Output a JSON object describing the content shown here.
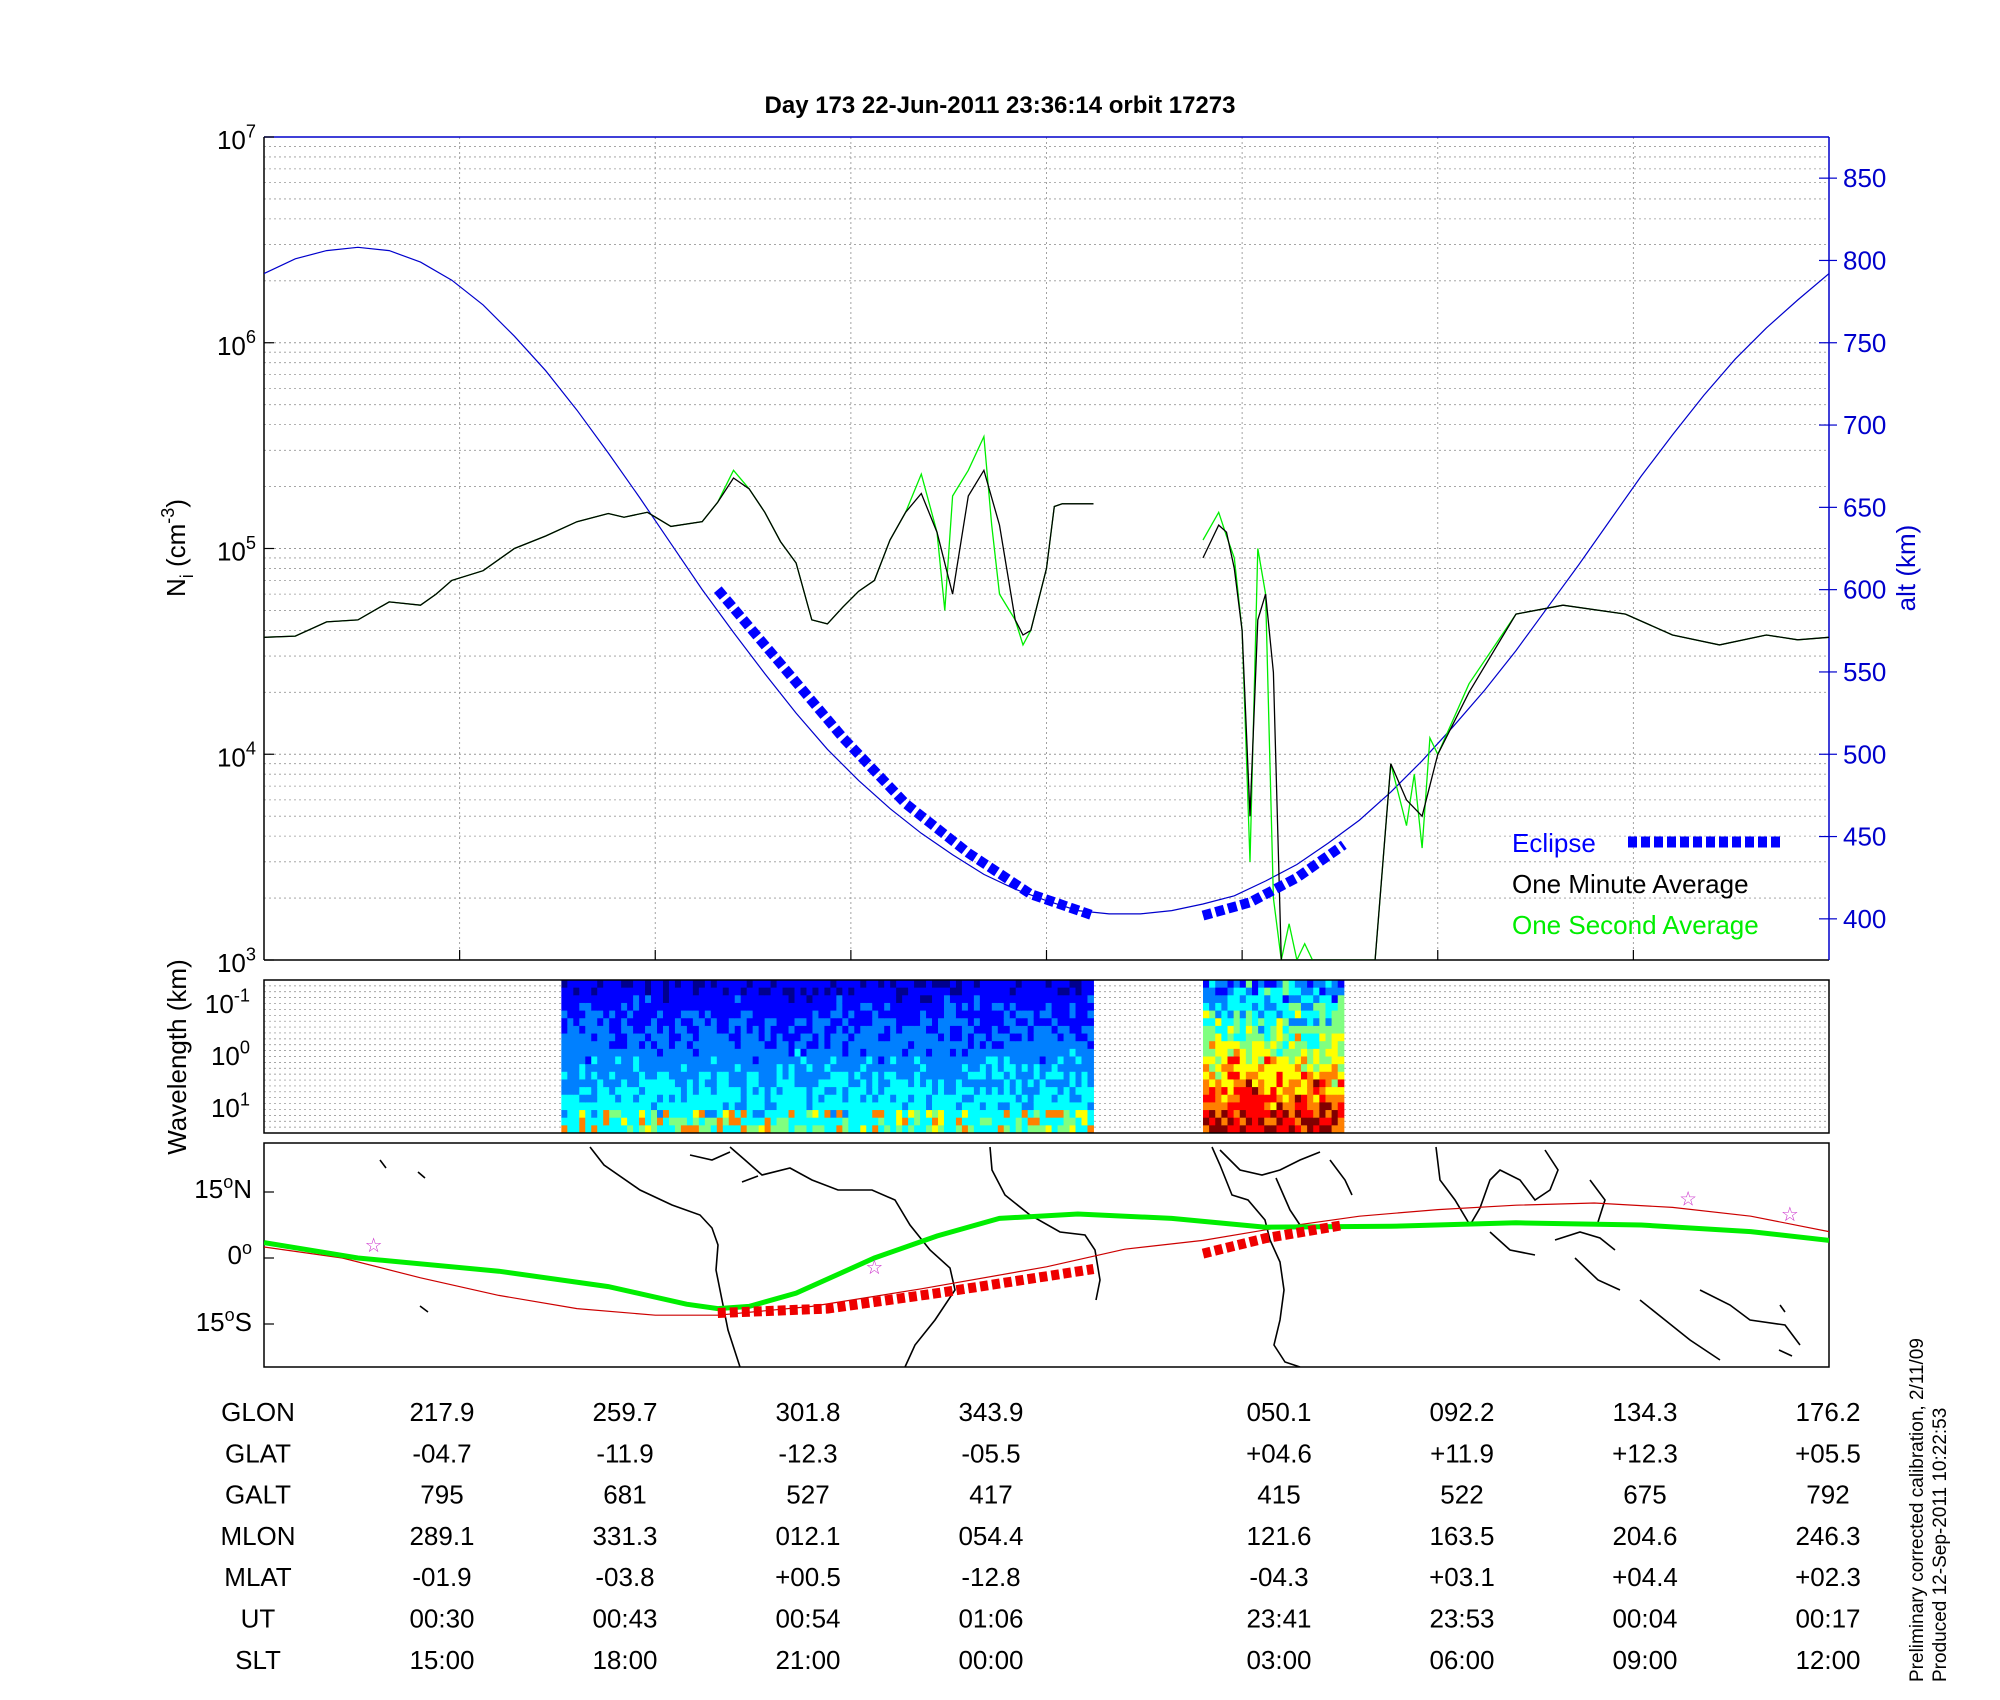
{
  "figure": {
    "title": "Day 173  22-Jun-2011 23:36:14   orbit 17273",
    "footnote_1": "Preliminary corrected calibration, 2/11/09",
    "footnote_2": "Produced 12-Sep-2011 10:22:53"
  },
  "chart_data": [
    {
      "id": "density",
      "type": "line",
      "yscale": "log",
      "ylabel": "N_i (cm^-3)",
      "y_ticks": [
        "10^3",
        "10^4",
        "10^5",
        "10^6",
        "10^7"
      ],
      "ylim": [
        1000,
        10000000
      ],
      "y2label": "alt (km)",
      "y2_ticks": [
        400,
        450,
        500,
        550,
        600,
        650,
        700,
        750,
        800,
        850
      ],
      "y2lim": [
        375,
        875
      ],
      "x_tick_count": 8,
      "grid": true,
      "legend": {
        "placement": "bottom-right",
        "entries": [
          {
            "label": "Eclipse",
            "color": "#0000ff",
            "style": "thick-dashed"
          },
          {
            "label": "One Minute Average",
            "color": "#000000",
            "style": "line"
          },
          {
            "label": "One Second Average",
            "color": "#00ee00",
            "style": "line"
          }
        ]
      },
      "series": [
        {
          "name": "alt",
          "color": "#0000cc",
          "axis": "right",
          "x": [
            0.0,
            0.02,
            0.04,
            0.06,
            0.08,
            0.1,
            0.12,
            0.14,
            0.16,
            0.18,
            0.2,
            0.22,
            0.24,
            0.26,
            0.28,
            0.3,
            0.32,
            0.34,
            0.36,
            0.38,
            0.4,
            0.42,
            0.44,
            0.46,
            0.48,
            0.5,
            0.52,
            0.54,
            0.56,
            0.58,
            0.6,
            0.62,
            0.64,
            0.66,
            0.68,
            0.7,
            0.72,
            0.74,
            0.76,
            0.78,
            0.8,
            0.82,
            0.84,
            0.86,
            0.88,
            0.9,
            0.92,
            0.94,
            0.96,
            0.98,
            1.0
          ],
          "values": [
            792,
            801,
            806,
            808,
            806,
            799,
            788,
            773,
            754,
            733,
            709,
            683,
            656,
            628,
            600,
            574,
            549,
            525,
            503,
            484,
            467,
            452,
            439,
            427,
            418,
            411,
            405,
            403,
            403,
            405,
            409,
            414,
            423,
            433,
            446,
            460,
            477,
            496,
            517,
            539,
            563,
            589,
            615,
            642,
            669,
            694,
            718,
            740,
            759,
            776,
            792
          ]
        },
        {
          "name": "One Minute Average",
          "color": "#000000",
          "segments": [
            {
              "x": [
                0.0,
                0.02,
                0.04,
                0.06,
                0.08,
                0.1,
                0.11,
                0.12,
                0.14,
                0.16,
                0.18,
                0.2,
                0.22,
                0.23,
                0.245,
                0.26,
                0.28,
                0.29,
                0.3,
                0.31,
                0.32,
                0.33,
                0.34,
                0.35,
                0.36,
                0.37,
                0.38,
                0.39,
                0.4,
                0.41,
                0.42,
                0.43,
                0.44,
                0.45,
                0.46,
                0.47,
                0.48,
                0.485,
                0.49,
                0.5,
                0.505,
                0.51,
                0.52,
                0.53,
                0.53
              ],
              "values": [
                37000,
                37500,
                44000,
                45000,
                55000,
                53000,
                60000,
                70000,
                78000,
                100000,
                115000,
                135000,
                148000,
                142000,
                150000,
                128000,
                135000,
                168000,
                220000,
                195000,
                150000,
                108000,
                85000,
                45000,
                43000,
                52000,
                62000,
                70000,
                110000,
                150000,
                185000,
                120000,
                60000,
                180000,
                240000,
                130000,
                45000,
                38000,
                40000,
                80000,
                160000,
                165000,
                165000,
                165000,
                165000
              ]
            },
            {
              "x": [
                0.6,
                0.61,
                0.615,
                0.62,
                0.625,
                0.63,
                0.635,
                0.64,
                0.645,
                0.65,
                0.655,
                0.66,
                0.665,
                0.67,
                0.68,
                0.69,
                0.7,
                0.71,
                0.72,
                0.73,
                0.74,
                0.75,
                0.77,
                0.8,
                0.83,
                0.87,
                0.9,
                0.93,
                0.96,
                0.98,
                1.0
              ],
              "values": [
                90000,
                130000,
                120000,
                80000,
                40000,
                5000,
                45000,
                60000,
                25000,
                1000,
                1000,
                1000,
                1000,
                1000,
                1000,
                1000,
                1000,
                1000,
                9000,
                6000,
                5000,
                10000,
                20000,
                48000,
                53000,
                48000,
                38000,
                34000,
                38000,
                36000,
                37000
              ]
            }
          ]
        },
        {
          "name": "One Second Average",
          "color": "#00ee00",
          "segments": [
            {
              "x": [
                0.0,
                0.02,
                0.04,
                0.06,
                0.08,
                0.1,
                0.11,
                0.12,
                0.14,
                0.16,
                0.18,
                0.2,
                0.22,
                0.23,
                0.245,
                0.26,
                0.28,
                0.29,
                0.3,
                0.31,
                0.32,
                0.33,
                0.34,
                0.35,
                0.36,
                0.37,
                0.38,
                0.39,
                0.4,
                0.41,
                0.42,
                0.43,
                0.435,
                0.44,
                0.45,
                0.46,
                0.465,
                0.47,
                0.48,
                0.485,
                0.49,
                0.5,
                0.505,
                0.51,
                0.52,
                0.53
              ],
              "values": [
                37000,
                37500,
                44000,
                45000,
                55000,
                53000,
                60000,
                70000,
                78000,
                100000,
                115000,
                135000,
                148000,
                142000,
                150000,
                128000,
                135000,
                168000,
                240000,
                195000,
                150000,
                108000,
                85000,
                45000,
                43000,
                52000,
                62000,
                70000,
                110000,
                150000,
                230000,
                120000,
                50000,
                180000,
                240000,
                350000,
                130000,
                60000,
                45000,
                34000,
                40000,
                80000,
                160000,
                165000,
                165000,
                165000
              ]
            },
            {
              "x": [
                0.6,
                0.61,
                0.615,
                0.62,
                0.625,
                0.63,
                0.635,
                0.64,
                0.645,
                0.65,
                0.655,
                0.66,
                0.665,
                0.67,
                0.68,
                0.69,
                0.7,
                0.71,
                0.72,
                0.73,
                0.735,
                0.74,
                0.745,
                0.75,
                0.77,
                0.8,
                0.83,
                0.87,
                0.9,
                0.93,
                0.96,
                0.98,
                1.0
              ],
              "values": [
                110000,
                150000,
                115000,
                90000,
                40000,
                3000,
                100000,
                60000,
                2000,
                1000,
                1500,
                1000,
                1200,
                1000,
                1000,
                1000,
                1000,
                1000,
                9000,
                4500,
                8000,
                3500,
                12000,
                10000,
                22000,
                48000,
                53000,
                48000,
                38000,
                34000,
                38000,
                36000,
                37000
              ]
            }
          ]
        },
        {
          "name": "Eclipse",
          "color": "#0000ff",
          "axis": "right",
          "segments": [
            {
              "x": [
                0.29,
                0.33,
                0.37,
                0.41,
                0.45,
                0.49,
                0.53
              ],
              "values": [
                600,
                555,
                510,
                470,
                440,
                415,
                402
              ]
            },
            {
              "x": [
                0.6,
                0.63,
                0.66,
                0.69
              ],
              "values": [
                402,
                410,
                425,
                445
              ]
            }
          ]
        }
      ]
    },
    {
      "id": "spectrogram",
      "type": "heatmap",
      "ylabel": "Wavelength (km)",
      "y_ticks": [
        "10^-1",
        "10^0",
        "10^1"
      ],
      "colormap": [
        "#00008f",
        "#0000ff",
        "#0080ff",
        "#00ffff",
        "#80ff80",
        "#ffff00",
        "#ff8000",
        "#ff0000",
        "#800000"
      ],
      "data_ranges": [
        {
          "x_start": 0.19,
          "x_end": 0.53,
          "intensity": "low"
        },
        {
          "x_start": 0.6,
          "x_end": 0.69,
          "intensity": "high"
        }
      ]
    },
    {
      "id": "track",
      "type": "line",
      "y_ticks": [
        "15°N",
        "0°",
        "15°S"
      ],
      "series": [
        {
          "name": "geographic track",
          "color": "#00ee00"
        },
        {
          "name": "magnetic track",
          "color": "#cc0000"
        },
        {
          "name": "eclipse",
          "color": "#ee0000",
          "style": "thick-dashed"
        }
      ]
    }
  ],
  "table": {
    "row_labels": [
      "GLON",
      "GLAT",
      "GALT",
      "MLON",
      "MLAT",
      "UT",
      "SLT"
    ],
    "columns": [
      [
        "217.9",
        "-04.7",
        "795",
        "289.1",
        "-01.9",
        "00:30",
        "15:00"
      ],
      [
        "259.7",
        "-11.9",
        "681",
        "331.3",
        "-03.8",
        "00:43",
        "18:00"
      ],
      [
        "301.8",
        "-12.3",
        "527",
        "012.1",
        "+00.5",
        "00:54",
        "21:00"
      ],
      [
        "343.9",
        "-05.5",
        "417",
        "054.4",
        "-12.8",
        "01:06",
        "00:00"
      ],
      [
        "050.1",
        "+04.6",
        "415",
        "121.6",
        "-04.3",
        "23:41",
        "03:00"
      ],
      [
        "092.2",
        "+11.9",
        "522",
        "163.5",
        "+03.1",
        "23:53",
        "06:00"
      ],
      [
        "134.3",
        "+12.3",
        "675",
        "204.6",
        "+04.4",
        "00:04",
        "09:00"
      ],
      [
        "176.2",
        "+05.5",
        "792",
        "246.3",
        "+02.3",
        "00:17",
        "12:00"
      ]
    ]
  },
  "colors": {
    "axis": "#000000",
    "right_axis": "#0000cc",
    "grid": "#999999"
  }
}
